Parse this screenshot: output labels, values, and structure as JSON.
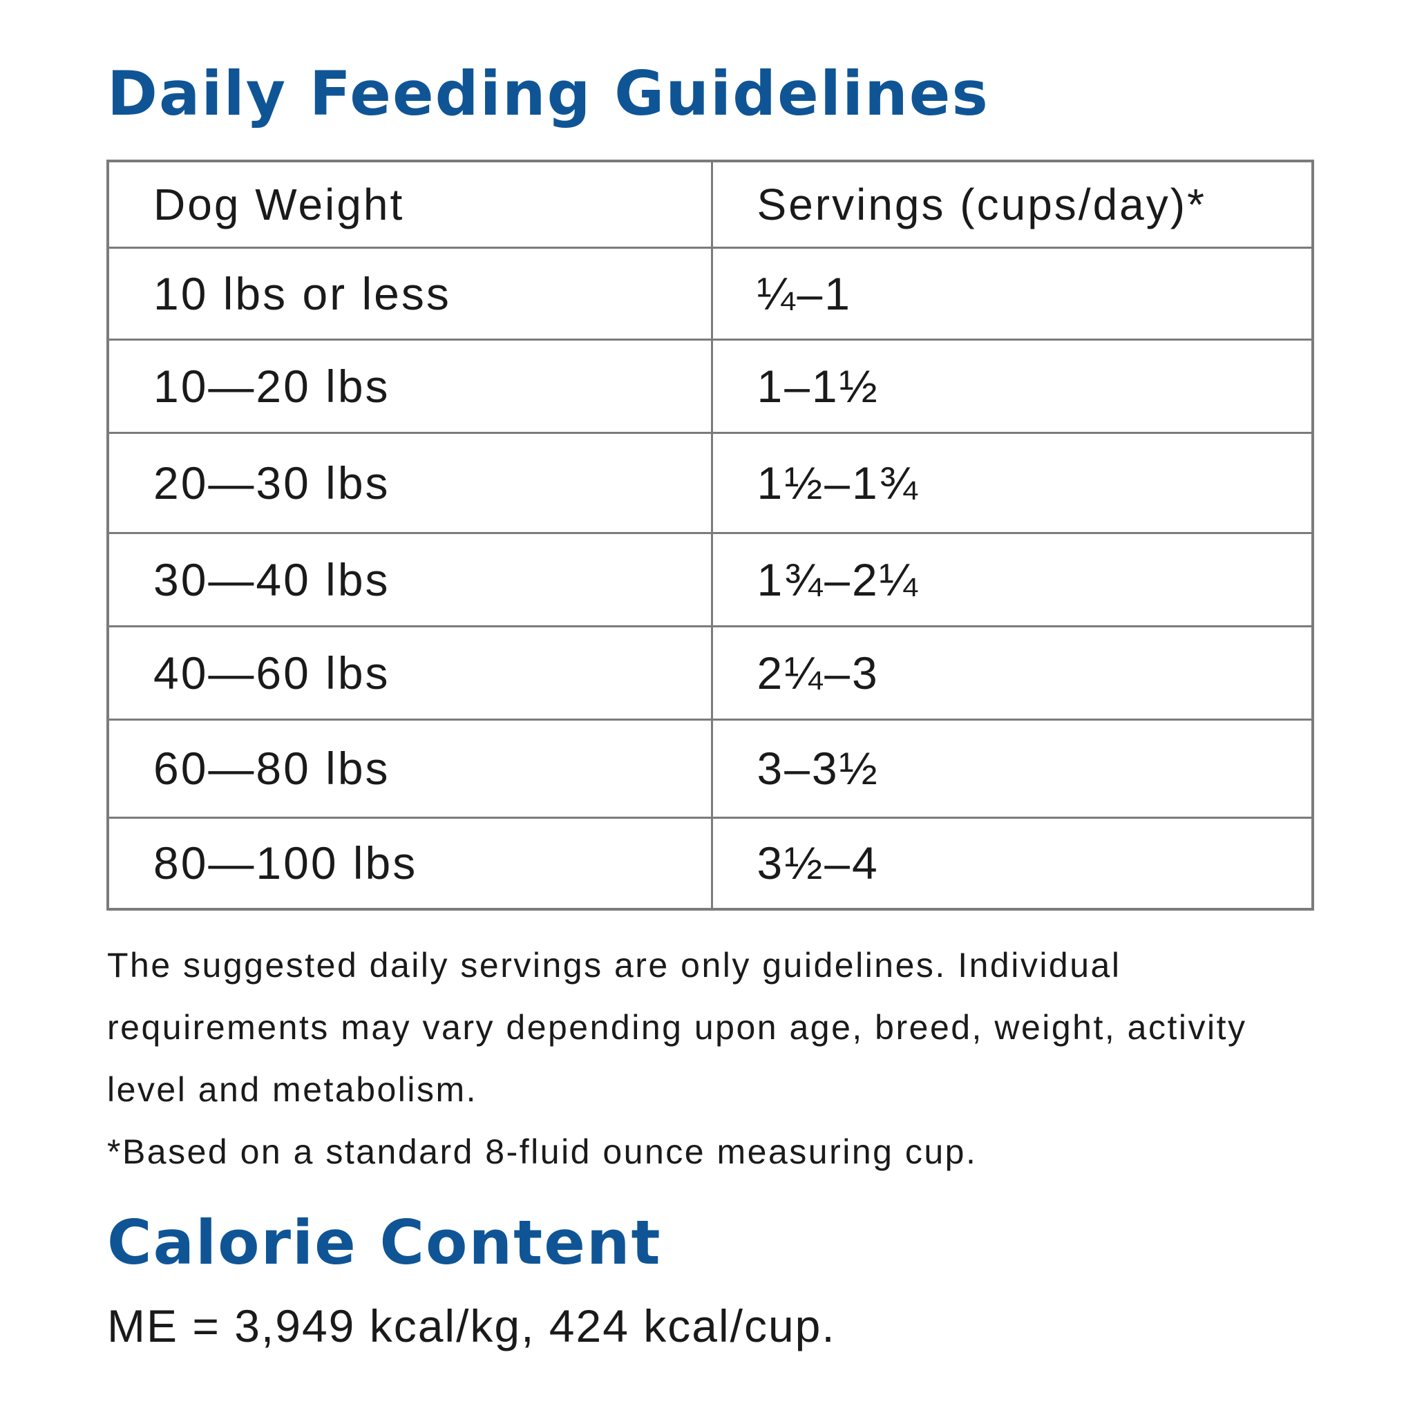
{
  "feeding": {
    "title": "Daily Feeding Guidelines",
    "header": {
      "weight": "Dog Weight",
      "servings": "Servings (cups/day)*"
    },
    "rows": [
      {
        "weight": "10 lbs or less",
        "servings": "¼–1"
      },
      {
        "weight": "10—20 lbs",
        "servings": "1–1½"
      },
      {
        "weight": "20—30 lbs",
        "servings": "1½–1¾"
      },
      {
        "weight": "30—40 lbs",
        "servings": "1¾–2¼"
      },
      {
        "weight": "40—60 lbs",
        "servings": "2¼–3"
      },
      {
        "weight": "60—80 lbs",
        "servings": "3–3½"
      },
      {
        "weight": "80—100 lbs",
        "servings": "3½–4"
      }
    ],
    "note": "The suggested daily servings are only guidelines. Individual requirements may vary depending upon age, breed, weight, activity level and metabolism.",
    "footnote": "*Based on a standard 8-fluid ounce measuring cup."
  },
  "calorie": {
    "title": "Calorie Content",
    "text": "ME = 3,949 kcal/kg, 424 kcal/cup."
  },
  "colors": {
    "heading": "#0f5596",
    "text": "#1a1a1a",
    "table_border": "#7b7b7b"
  }
}
